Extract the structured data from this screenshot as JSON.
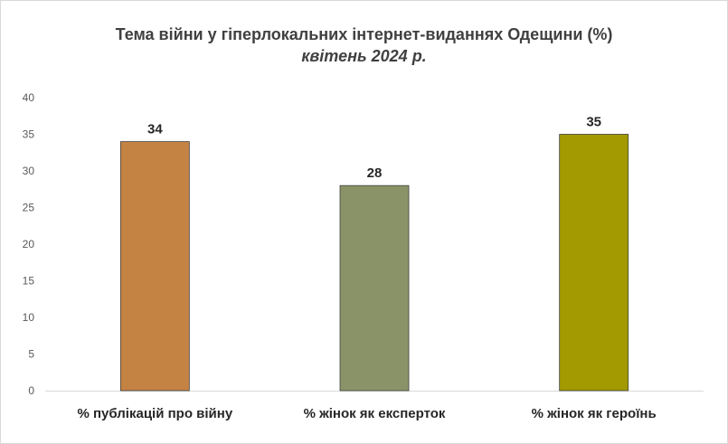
{
  "chart_data": {
    "type": "bar",
    "title": "Тема війни у гіперлокальних інтернет-виданнях Одещини (%)",
    "subtitle": "квітень 2024 р.",
    "categories": [
      "% публікацій про війну",
      "% жінок як експерток",
      "% жінок як героїнь"
    ],
    "values": [
      34,
      28,
      35
    ],
    "colors": [
      "#C48243",
      "#8A9367",
      "#A29A00"
    ],
    "ylim": [
      0,
      40
    ],
    "yticks": [
      "0",
      "5",
      "10",
      "15",
      "20",
      "25",
      "30",
      "35",
      "40"
    ],
    "grid": false,
    "legend": "none"
  }
}
